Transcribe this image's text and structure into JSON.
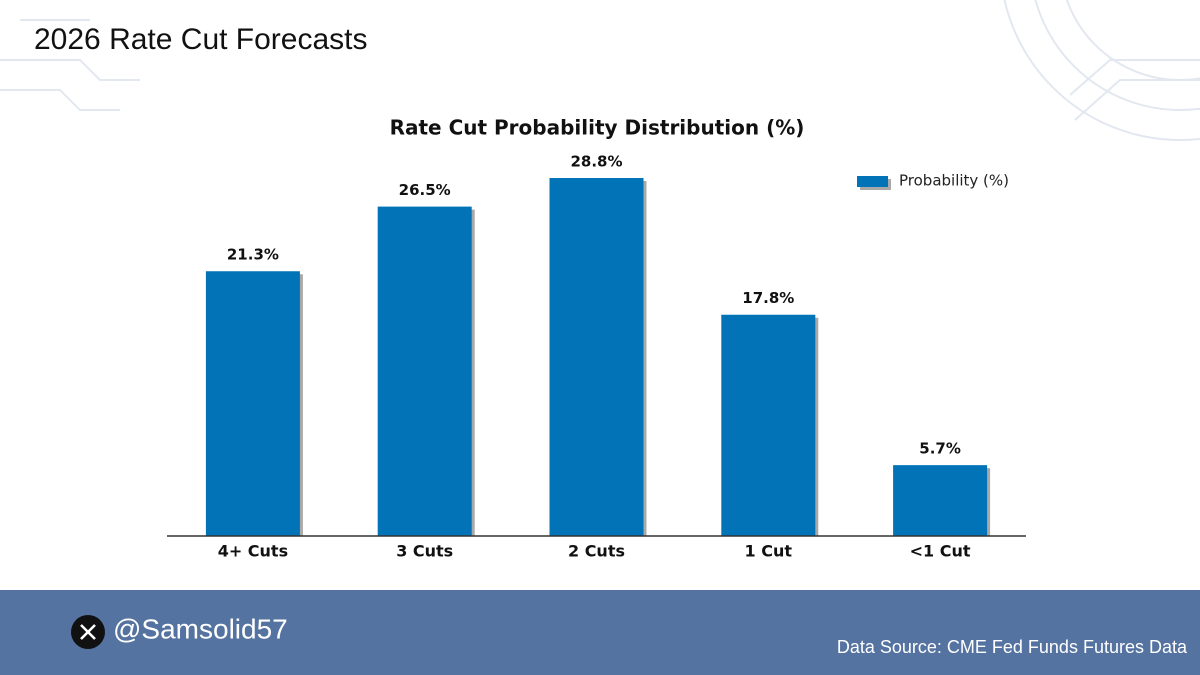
{
  "header": {
    "title": "2026 Rate Cut Forecasts"
  },
  "chart_data": {
    "type": "bar",
    "title": "Rate Cut Probability Distribution (%)",
    "categories": [
      "4+ Cuts",
      "3 Cuts",
      "2 Cuts",
      "1 Cut",
      "<1 Cut"
    ],
    "series": [
      {
        "name": "Probability (%)",
        "color": "#0173b6",
        "values": [
          21.3,
          26.5,
          28.8,
          17.8,
          5.7
        ],
        "value_labels": [
          "21.3%",
          "26.5%",
          "28.8%",
          "17.8%",
          "5.7%"
        ]
      }
    ]
  },
  "footer": {
    "handle": "@Samsolid57",
    "source": "Data Source: CME Fed Funds Futures Data"
  }
}
